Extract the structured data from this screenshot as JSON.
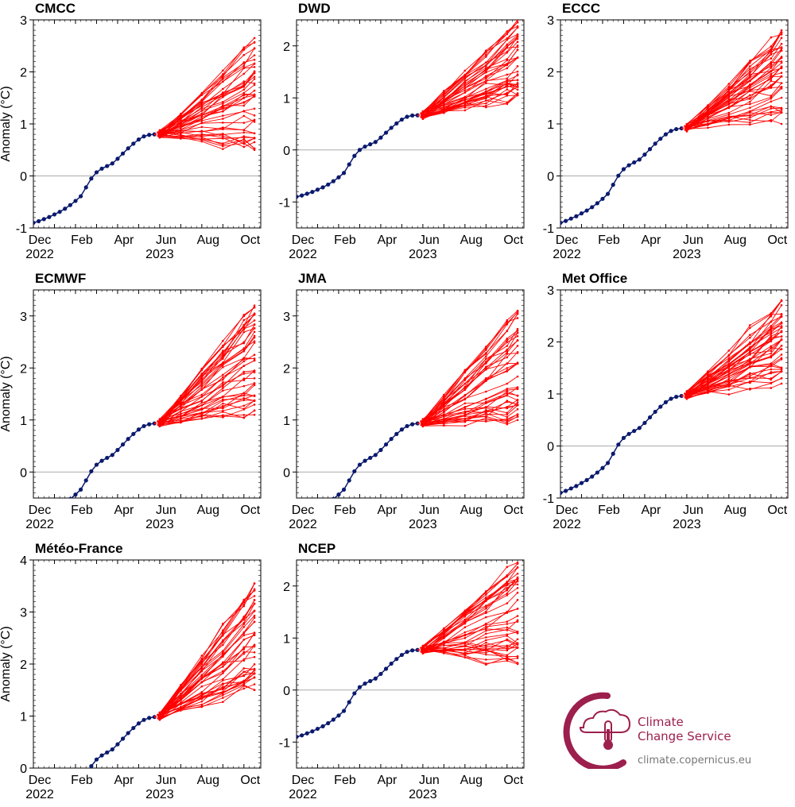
{
  "figure": {
    "ylabel": "Anomaly (°C)",
    "x_month_ticks": [
      "Dec",
      "Feb",
      "Apr",
      "Jun",
      "Aug",
      "Oct"
    ],
    "x_year_labels": [
      "2022",
      "2023"
    ],
    "colors": {
      "observed": "#0b1a6e",
      "forecast": "#ff0000",
      "zero_line": "#aaaaaa",
      "brand": "#9c1f4d"
    }
  },
  "logo": {
    "line1": "Climate",
    "line2": "Change Service",
    "url": "climate.copernicus.eu"
  },
  "chart_data": [
    {
      "type": "line",
      "title": "CMCC",
      "ylim": [
        -1,
        3
      ],
      "yticks": [
        -1,
        0,
        1,
        2,
        3
      ],
      "forecast_start": 0.81,
      "final_median": 1.8,
      "final_min": 0.5,
      "final_max": 2.65,
      "grid": false
    },
    {
      "type": "line",
      "title": "DWD",
      "ylim": [
        -1.5,
        2.5
      ],
      "yticks": [
        -1,
        0,
        1,
        2
      ],
      "forecast_start": 0.67,
      "final_median": 1.7,
      "final_min": 1.05,
      "final_max": 2.5,
      "grid": false
    },
    {
      "type": "line",
      "title": "ECCC",
      "ylim": [
        -1,
        3
      ],
      "yticks": [
        -1,
        0,
        1,
        2,
        3
      ],
      "forecast_start": 0.93,
      "final_median": 1.6,
      "final_min": 1.0,
      "final_max": 2.8,
      "grid": false
    },
    {
      "type": "line",
      "title": "ECMWF",
      "ylim": [
        -0.5,
        3.5
      ],
      "yticks": [
        0,
        1,
        2,
        3
      ],
      "forecast_start": 0.95,
      "final_median": 2.2,
      "final_min": 1.1,
      "final_max": 3.2,
      "grid": false
    },
    {
      "type": "line",
      "title": "JMA",
      "ylim": [
        -0.5,
        3.5
      ],
      "yticks": [
        0,
        1,
        2,
        3
      ],
      "forecast_start": 0.95,
      "final_median": 2.1,
      "final_min": 1.0,
      "final_max": 3.1,
      "grid": false
    },
    {
      "type": "line",
      "title": "Met Office",
      "ylim": [
        -1,
        3
      ],
      "yticks": [
        -1,
        0,
        1,
        2,
        3
      ],
      "forecast_start": 0.98,
      "final_median": 2.05,
      "final_min": 1.2,
      "final_max": 2.8,
      "grid": false
    },
    {
      "type": "line",
      "title": "Météo-France",
      "ylim": [
        0,
        4
      ],
      "yticks": [
        0,
        1,
        2,
        3,
        4
      ],
      "forecast_start": 1.0,
      "final_median": 2.6,
      "final_min": 1.5,
      "final_max": 3.55,
      "grid": false
    },
    {
      "type": "line",
      "title": "NCEP",
      "ylim": [
        -1.5,
        2.5
      ],
      "yticks": [
        -1,
        0,
        1,
        2
      ],
      "forecast_start": 0.78,
      "final_median": 1.7,
      "final_min": 0.5,
      "final_max": 2.45,
      "grid": false
    }
  ],
  "observed_series": {
    "x_month_index": [
      0,
      0.25,
      0.5,
      0.75,
      1,
      1.25,
      1.5,
      1.75,
      2,
      2.25,
      2.5,
      2.75,
      3,
      3.25,
      3.5,
      3.75,
      4,
      4.25,
      4.5,
      4.75,
      5,
      5.25,
      5.5,
      5.75
    ],
    "values": [
      -0.9,
      -0.87,
      -0.83,
      -0.79,
      -0.74,
      -0.69,
      -0.63,
      -0.56,
      -0.48,
      -0.39,
      -0.22,
      -0.05,
      0.07,
      0.14,
      0.19,
      0.24,
      0.33,
      0.43,
      0.53,
      0.62,
      0.7,
      0.76,
      0.79,
      0.8
    ]
  }
}
